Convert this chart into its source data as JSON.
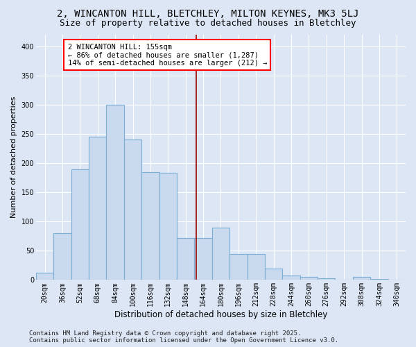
{
  "title": "2, WINCANTON HILL, BLETCHLEY, MILTON KEYNES, MK3 5LJ",
  "subtitle": "Size of property relative to detached houses in Bletchley",
  "xlabel": "Distribution of detached houses by size in Bletchley",
  "ylabel": "Number of detached properties",
  "categories": [
    "20sqm",
    "36sqm",
    "52sqm",
    "68sqm",
    "84sqm",
    "100sqm",
    "116sqm",
    "132sqm",
    "148sqm",
    "164sqm",
    "180sqm",
    "196sqm",
    "212sqm",
    "228sqm",
    "244sqm",
    "260sqm",
    "276sqm",
    "292sqm",
    "308sqm",
    "324sqm",
    "340sqm"
  ],
  "values": [
    12,
    80,
    190,
    245,
    300,
    240,
    185,
    183,
    72,
    72,
    90,
    45,
    45,
    20,
    8,
    5,
    3,
    1,
    5,
    2,
    1
  ],
  "bar_color": "#c9d9ee",
  "bar_edge_color": "#7bafd4",
  "vline_color": "#990000",
  "annotation_text": "2 WINCANTON HILL: 155sqm\n← 86% of detached houses are smaller (1,287)\n14% of semi-detached houses are larger (212) →",
  "ylim": [
    0,
    420
  ],
  "yticks": [
    0,
    50,
    100,
    150,
    200,
    250,
    300,
    350,
    400
  ],
  "bg_color": "#dce6f5",
  "plot_bg_color": "#dce6f5",
  "footer_text": "Contains HM Land Registry data © Crown copyright and database right 2025.\nContains public sector information licensed under the Open Government Licence v3.0.",
  "title_fontsize": 10,
  "subtitle_fontsize": 9,
  "xlabel_fontsize": 8.5,
  "ylabel_fontsize": 8,
  "tick_fontsize": 7,
  "annotation_fontsize": 7.5,
  "footer_fontsize": 6.5,
  "vline_xindex": 8.6
}
